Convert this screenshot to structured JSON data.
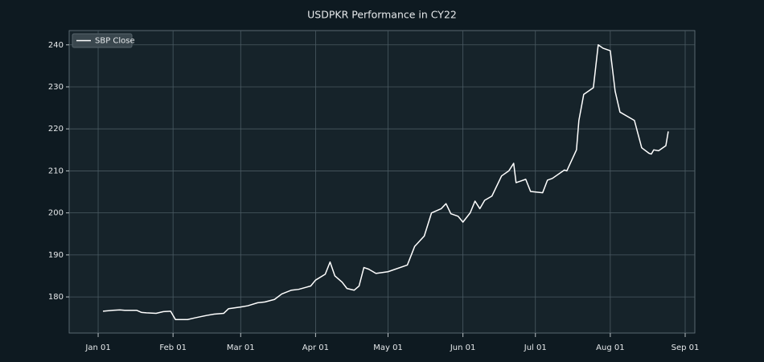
{
  "chart_data": {
    "type": "line",
    "title": "USDPKR Performance in CY22",
    "legend": "upper left",
    "grid": true,
    "xlim": [
      "2021-12-20",
      "2022-09-05"
    ],
    "xticks": [
      {
        "value": "2022-01-01",
        "label": "Jan 01"
      },
      {
        "value": "2022-02-01",
        "label": "Feb 01"
      },
      {
        "value": "2022-03-01",
        "label": "Mar 01"
      },
      {
        "value": "2022-04-01",
        "label": "Apr 01"
      },
      {
        "value": "2022-05-01",
        "label": "May 01"
      },
      {
        "value": "2022-06-01",
        "label": "Jun 01"
      },
      {
        "value": "2022-07-01",
        "label": "Jul 01"
      },
      {
        "value": "2022-08-01",
        "label": "Aug 01"
      },
      {
        "value": "2022-09-01",
        "label": "Sep 01"
      }
    ],
    "ylim": [
      171.4,
      243.4
    ],
    "yticks": [
      180,
      190,
      200,
      210,
      220,
      230,
      240
    ],
    "x": [
      "2022-01-03",
      "2022-01-07",
      "2022-01-10",
      "2022-01-12",
      "2022-01-17",
      "2022-01-19",
      "2022-01-21",
      "2022-01-25",
      "2022-01-28",
      "2022-01-31",
      "2022-02-02",
      "2022-02-07",
      "2022-02-10",
      "2022-02-15",
      "2022-02-18",
      "2022-02-22",
      "2022-02-24",
      "2022-03-01",
      "2022-03-04",
      "2022-03-08",
      "2022-03-11",
      "2022-03-15",
      "2022-03-18",
      "2022-03-22",
      "2022-03-25",
      "2022-03-30",
      "2022-04-01",
      "2022-04-05",
      "2022-04-07",
      "2022-04-09",
      "2022-04-12",
      "2022-04-14",
      "2022-04-17",
      "2022-04-19",
      "2022-04-21",
      "2022-04-23",
      "2022-04-26",
      "2022-05-01",
      "2022-05-09",
      "2022-05-12",
      "2022-05-16",
      "2022-05-19",
      "2022-05-23",
      "2022-05-25",
      "2022-05-27",
      "2022-05-30",
      "2022-06-01",
      "2022-06-04",
      "2022-06-06",
      "2022-06-08",
      "2022-06-10",
      "2022-06-13",
      "2022-06-17",
      "2022-06-20",
      "2022-06-22",
      "2022-06-23",
      "2022-06-27",
      "2022-06-29",
      "2022-07-04",
      "2022-07-06",
      "2022-07-08",
      "2022-07-13",
      "2022-07-14",
      "2022-07-18",
      "2022-07-19",
      "2022-07-21",
      "2022-07-25",
      "2022-07-27",
      "2022-07-29",
      "2022-08-01",
      "2022-08-03",
      "2022-08-05",
      "2022-08-11",
      "2022-08-14",
      "2022-08-17",
      "2022-08-18",
      "2022-08-19",
      "2022-08-21",
      "2022-08-24",
      "2022-08-25"
    ],
    "series": [
      {
        "name": "SBP Close",
        "color": "#ffffff",
        "values": [
          176.6,
          176.8,
          176.9,
          176.8,
          176.8,
          176.3,
          176.2,
          176.1,
          176.5,
          176.6,
          174.6,
          174.6,
          175.0,
          175.6,
          175.9,
          176.1,
          177.2,
          177.6,
          177.9,
          178.6,
          178.8,
          179.4,
          180.7,
          181.6,
          181.8,
          182.6,
          184.0,
          185.4,
          188.3,
          185.0,
          183.5,
          182.0,
          181.6,
          182.6,
          187.0,
          186.6,
          185.6,
          186.0,
          187.6,
          192.0,
          194.5,
          200.0,
          201.0,
          202.2,
          199.8,
          199.2,
          197.8,
          200.0,
          202.8,
          201.0,
          203.0,
          204.0,
          208.8,
          210.0,
          211.8,
          207.2,
          208.0,
          205.1,
          204.8,
          207.8,
          208.2,
          210.2,
          210.0,
          215.0,
          222.0,
          228.2,
          229.8,
          240.0,
          239.2,
          238.6,
          229.0,
          224.0,
          222.0,
          215.5,
          214.2,
          214.0,
          215.0,
          214.8,
          216.0,
          219.4
        ]
      }
    ]
  }
}
